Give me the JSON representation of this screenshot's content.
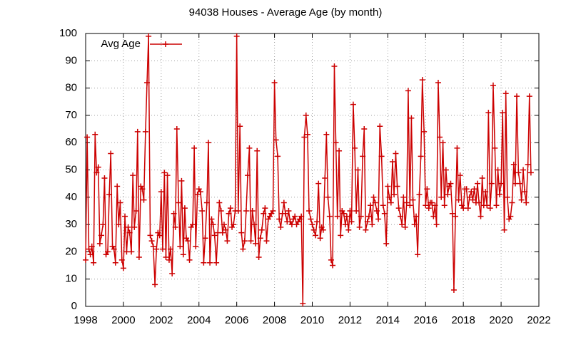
{
  "chart_data": {
    "type": "line",
    "title": "94038 Houses - Average Age (by month)",
    "xlim": [
      1998,
      2022
    ],
    "xticks": [
      1998,
      2000,
      2002,
      2004,
      2006,
      2008,
      2010,
      2012,
      2014,
      2016,
      2018,
      2020,
      2022
    ],
    "ylim": [
      0,
      100
    ],
    "yticks": [
      0,
      10,
      20,
      30,
      40,
      50,
      60,
      70,
      80,
      90,
      100
    ],
    "grid": true,
    "legend": "top-left",
    "x": [
      1998.0,
      1998.08,
      1998.17,
      1998.25,
      1998.33,
      1998.42,
      1998.5,
      1998.58,
      1998.67,
      1998.75,
      1998.83,
      1998.92,
      1999.0,
      1999.08,
      1999.17,
      1999.25,
      1999.33,
      1999.42,
      1999.5,
      1999.58,
      1999.67,
      1999.75,
      1999.83,
      1999.92,
      2000.0,
      2000.08,
      2000.17,
      2000.25,
      2000.33,
      2000.42,
      2000.5,
      2000.58,
      2000.67,
      2000.75,
      2000.83,
      2000.92,
      2001.0,
      2001.08,
      2001.17,
      2001.25,
      2001.33,
      2001.42,
      2001.5,
      2001.58,
      2001.67,
      2001.75,
      2001.83,
      2001.92,
      2002.0,
      2002.08,
      2002.17,
      2002.25,
      2002.33,
      2002.42,
      2002.5,
      2002.58,
      2002.67,
      2002.75,
      2002.83,
      2002.92,
      2003.0,
      2003.08,
      2003.17,
      2003.25,
      2003.33,
      2003.42,
      2003.5,
      2003.58,
      2003.67,
      2003.75,
      2003.83,
      2003.92,
      2004.0,
      2004.08,
      2004.17,
      2004.25,
      2004.33,
      2004.42,
      2004.5,
      2004.58,
      2004.67,
      2004.75,
      2004.83,
      2004.92,
      2005.0,
      2005.08,
      2005.17,
      2005.25,
      2005.33,
      2005.42,
      2005.5,
      2005.58,
      2005.67,
      2005.75,
      2005.83,
      2005.92,
      2006.0,
      2006.08,
      2006.17,
      2006.25,
      2006.33,
      2006.42,
      2006.5,
      2006.58,
      2006.67,
      2006.75,
      2006.83,
      2006.92,
      2007.0,
      2007.08,
      2007.17,
      2007.25,
      2007.33,
      2007.42,
      2007.5,
      2007.58,
      2007.67,
      2007.75,
      2007.83,
      2007.92,
      2008.0,
      2008.08,
      2008.17,
      2008.25,
      2008.33,
      2008.42,
      2008.5,
      2008.58,
      2008.67,
      2008.75,
      2008.83,
      2008.92,
      2009.0,
      2009.08,
      2009.17,
      2009.25,
      2009.33,
      2009.42,
      2009.5,
      2009.58,
      2009.67,
      2009.75,
      2009.83,
      2009.92,
      2010.0,
      2010.08,
      2010.17,
      2010.25,
      2010.33,
      2010.42,
      2010.5,
      2010.58,
      2010.67,
      2010.75,
      2010.83,
      2010.92,
      2011.0,
      2011.08,
      2011.17,
      2011.25,
      2011.33,
      2011.42,
      2011.5,
      2011.58,
      2011.67,
      2011.75,
      2011.83,
      2011.92,
      2012.0,
      2012.08,
      2012.17,
      2012.25,
      2012.33,
      2012.42,
      2012.5,
      2012.58,
      2012.67,
      2012.75,
      2012.83,
      2012.92,
      2013.0,
      2013.08,
      2013.17,
      2013.25,
      2013.33,
      2013.42,
      2013.5,
      2013.58,
      2013.67,
      2013.75,
      2013.83,
      2013.92,
      2014.0,
      2014.08,
      2014.17,
      2014.25,
      2014.33,
      2014.42,
      2014.5,
      2014.58,
      2014.67,
      2014.75,
      2014.83,
      2014.92,
      2015.0,
      2015.08,
      2015.17,
      2015.25,
      2015.33,
      2015.42,
      2015.5,
      2015.58,
      2015.67,
      2015.75,
      2015.83,
      2015.92,
      2016.0,
      2016.08,
      2016.17,
      2016.25,
      2016.33,
      2016.42,
      2016.5,
      2016.58,
      2016.67,
      2016.75,
      2016.83,
      2016.92,
      2017.0,
      2017.08,
      2017.17,
      2017.25,
      2017.33,
      2017.42,
      2017.5,
      2017.58,
      2017.67,
      2017.75,
      2017.83,
      2017.92,
      2018.0,
      2018.08,
      2018.17,
      2018.25,
      2018.33,
      2018.42,
      2018.5,
      2018.58,
      2018.67,
      2018.75,
      2018.83,
      2018.92,
      2019.0,
      2019.08,
      2019.17,
      2019.25,
      2019.33,
      2019.42,
      2019.5,
      2019.58,
      2019.67,
      2019.75,
      2019.83,
      2019.92,
      2020.0,
      2020.08,
      2020.17,
      2020.25,
      2020.33,
      2020.42,
      2020.5,
      2020.58,
      2020.67,
      2020.75,
      2020.83,
      2020.92,
      2021.0,
      2021.08,
      2021.17,
      2021.25,
      2021.33,
      2021.42,
      2021.5,
      2021.58
    ],
    "series": [
      {
        "name": "Avg Age",
        "color": "#cc0000",
        "values": [
          17,
          62,
          21,
          19,
          22,
          16,
          63,
          49,
          51,
          23,
          26,
          30,
          47,
          19,
          20,
          41,
          56,
          22,
          21,
          16,
          44,
          30,
          38,
          17,
          14,
          33,
          20,
          29,
          27,
          20,
          48,
          29,
          35,
          64,
          18,
          44,
          43,
          39,
          64,
          82,
          99,
          26,
          24,
          22,
          8,
          21,
          27,
          26,
          42,
          21,
          49,
          18,
          48,
          17,
          21,
          12,
          34,
          29,
          65,
          38,
          22,
          46,
          19,
          36,
          25,
          24,
          17,
          29,
          30,
          58,
          22,
          41,
          43,
          42,
          35,
          16,
          25,
          38,
          60,
          16,
          32,
          30,
          26,
          16,
          27,
          38,
          35,
          27,
          30,
          28,
          24,
          34,
          36,
          29,
          30,
          35,
          99,
          35,
          66,
          27,
          21,
          24,
          35,
          48,
          58,
          24,
          35,
          30,
          23,
          57,
          18,
          25,
          28,
          34,
          36,
          24,
          32,
          33,
          34,
          35,
          82,
          61,
          55,
          32,
          29,
          34,
          38,
          34,
          31,
          35,
          31,
          30,
          32,
          33,
          30,
          31,
          32,
          33,
          1,
          62,
          70,
          63,
          35,
          32,
          30,
          28,
          26,
          31,
          45,
          25,
          29,
          28,
          47,
          63,
          40,
          33,
          17,
          15,
          88,
          60,
          33,
          57,
          26,
          35,
          34,
          30,
          33,
          28,
          35,
          31,
          74,
          58,
          35,
          50,
          29,
          33,
          55,
          65,
          28,
          31,
          33,
          37,
          30,
          40,
          38,
          35,
          32,
          66,
          55,
          37,
          34,
          23,
          44,
          40,
          38,
          53,
          41,
          56,
          44,
          36,
          33,
          30,
          40,
          29,
          38,
          79,
          37,
          69,
          39,
          30,
          33,
          19,
          41,
          55,
          83,
          64,
          37,
          43,
          36,
          38,
          38,
          33,
          37,
          30,
          82,
          62,
          40,
          60,
          37,
          50,
          41,
          44,
          45,
          34,
          6,
          33,
          58,
          39,
          48,
          37,
          36,
          43,
          43,
          36,
          40,
          42,
          39,
          43,
          38,
          45,
          38,
          33,
          47,
          37,
          42,
          37,
          71,
          36,
          45,
          81,
          58,
          37,
          50,
          41,
          45,
          71,
          28,
          78,
          40,
          32,
          33,
          38,
          52,
          45,
          77,
          49,
          45,
          39,
          50,
          42,
          38,
          52,
          77,
          49
        ]
      }
    ]
  }
}
